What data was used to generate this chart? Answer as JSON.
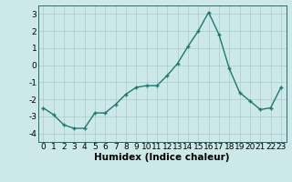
{
  "x": [
    0,
    1,
    2,
    3,
    4,
    5,
    6,
    7,
    8,
    9,
    10,
    11,
    12,
    13,
    14,
    15,
    16,
    17,
    18,
    19,
    20,
    21,
    22,
    23
  ],
  "y": [
    -2.5,
    -2.9,
    -3.5,
    -3.7,
    -3.7,
    -2.8,
    -2.8,
    -2.3,
    -1.7,
    -1.3,
    -1.2,
    -1.2,
    -0.6,
    0.1,
    1.1,
    2.0,
    3.1,
    1.8,
    -0.2,
    -1.6,
    -2.1,
    -2.6,
    -2.5,
    -1.3
  ],
  "xlabel": "Humidex (Indice chaleur)",
  "ylim": [
    -4.5,
    3.5
  ],
  "xlim": [
    -0.5,
    23.5
  ],
  "yticks": [
    -4,
    -3,
    -2,
    -1,
    0,
    1,
    2,
    3
  ],
  "xticks": [
    0,
    1,
    2,
    3,
    4,
    5,
    6,
    7,
    8,
    9,
    10,
    11,
    12,
    13,
    14,
    15,
    16,
    17,
    18,
    19,
    20,
    21,
    22,
    23
  ],
  "line_color": "#1a7a6e",
  "marker_color": "#1a7a6e",
  "bg_color": "#cce8e8",
  "grid_color": "#aacccc",
  "axis_color": "#336666",
  "xlabel_fontsize": 7.5,
  "tick_fontsize": 6.5,
  "marker": "+"
}
